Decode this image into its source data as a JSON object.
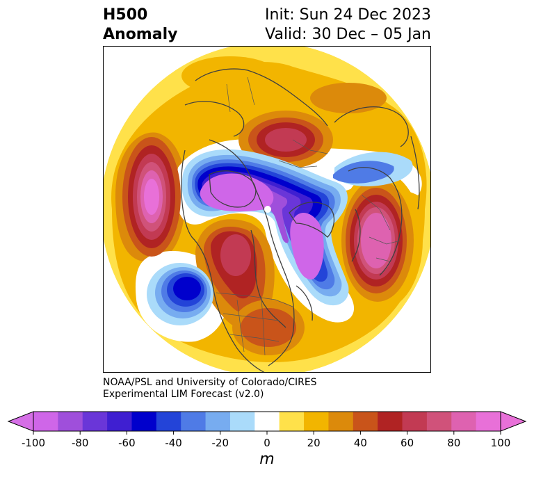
{
  "header": {
    "title_line1": "H500",
    "title_line2": "Anomaly",
    "init": "Init: Sun 24 Dec 2023",
    "valid": "Valid: 30 Dec – 05 Jan"
  },
  "credit": {
    "line1": "NOAA/PSL and University of Colorado/CIRES",
    "line2": "Experimental LIM Forecast (v2.0)"
  },
  "colorbar": {
    "unit": "m",
    "ticks": [
      "-100",
      "-80",
      "-60",
      "-40",
      "-20",
      "0",
      "20",
      "40",
      "60",
      "80",
      "100"
    ],
    "colors": [
      "#cf66e8",
      "#9f4fdb",
      "#6a36d8",
      "#3f1fd1",
      "#0000cc",
      "#2344d8",
      "#4f7be6",
      "#77acf0",
      "#aadbfa",
      "#ffffff",
      "#ffe14a",
      "#f2b500",
      "#dc8a0b",
      "#c9541a",
      "#b02323",
      "#c23a53",
      "#d0527a",
      "#de62b0",
      "#e870d8"
    ],
    "under_color": "#d56fe6",
    "over_color": "#e870d8"
  },
  "map": {
    "projection": "north-polar-stereographic",
    "field": "500 hPa height anomaly"
  }
}
